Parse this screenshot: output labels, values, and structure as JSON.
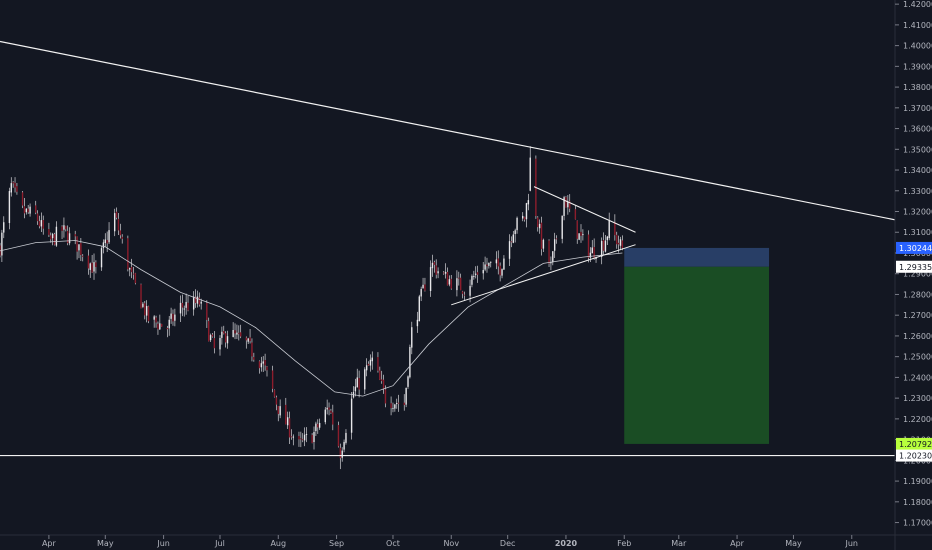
{
  "colors": {
    "background": "#131722",
    "candle_up": "#e7e7ea",
    "candle_down": "#8c1d2c",
    "wick": "#d4d4d8",
    "trendline": "#f2f2f2",
    "moving_average": "#c9ccd3",
    "stop_zone": "#283e66",
    "target_zone": "#1a4d24",
    "label_current_price": "#2962ff",
    "label_highlight": "#b8ff3c",
    "label_neutral": "#ffffff"
  },
  "chart_data": {
    "type": "candlestick",
    "title": "",
    "xlabel": "",
    "ylabel": "",
    "x_range": [
      "2019-03-06",
      "2020-06-24"
    ],
    "ylim": [
      1.164,
      1.422
    ],
    "grid": false,
    "legend": "none",
    "x_ticks": [
      {
        "date": "2019-04-01",
        "label": "Apr",
        "bold": false
      },
      {
        "date": "2019-05-01",
        "label": "May",
        "bold": false
      },
      {
        "date": "2019-06-01",
        "label": "Jun",
        "bold": false
      },
      {
        "date": "2019-07-01",
        "label": "Jul",
        "bold": false
      },
      {
        "date": "2019-08-01",
        "label": "Aug",
        "bold": false
      },
      {
        "date": "2019-09-01",
        "label": "Sep",
        "bold": false
      },
      {
        "date": "2019-10-01",
        "label": "Oct",
        "bold": false
      },
      {
        "date": "2019-11-01",
        "label": "Nov",
        "bold": false
      },
      {
        "date": "2019-12-01",
        "label": "Dec",
        "bold": false
      },
      {
        "date": "2020-01-01",
        "label": "2020",
        "bold": true
      },
      {
        "date": "2020-02-01",
        "label": "Feb",
        "bold": false
      },
      {
        "date": "2020-03-01",
        "label": "Mar",
        "bold": false
      },
      {
        "date": "2020-04-01",
        "label": "Apr",
        "bold": false
      },
      {
        "date": "2020-05-01",
        "label": "May",
        "bold": false
      },
      {
        "date": "2020-06-01",
        "label": "Jun",
        "bold": false
      }
    ],
    "y_ticks": [
      "1.17000",
      "1.18000",
      "1.19000",
      "1.20000",
      "1.21000",
      "1.22000",
      "1.23000",
      "1.24000",
      "1.25000",
      "1.26000",
      "1.27000",
      "1.28000",
      "1.29000",
      "1.30000",
      "1.31000",
      "1.32000",
      "1.33000",
      "1.34000",
      "1.35000",
      "1.36000",
      "1.37000",
      "1.38000",
      "1.39000",
      "1.40000",
      "1.41000",
      "1.42000"
    ],
    "price_labels": [
      {
        "text": "1.30244",
        "value": 1.30244,
        "style": "current_price"
      },
      {
        "text": "1.29335",
        "value": 1.29335,
        "style": "neutral"
      },
      {
        "text": "1.20792",
        "value": 1.20792,
        "style": "highlight"
      },
      {
        "text": "1.20230",
        "value": 1.2023,
        "style": "neutral"
      }
    ],
    "price_anchors": [
      [
        "2019-03-06",
        1.303
      ],
      [
        "2019-03-12",
        1.332
      ],
      [
        "2019-03-18",
        1.32
      ],
      [
        "2019-03-25",
        1.318
      ],
      [
        "2019-04-01",
        1.305
      ],
      [
        "2019-04-08",
        1.311
      ],
      [
        "2019-04-17",
        1.303
      ],
      [
        "2019-04-26",
        1.291
      ],
      [
        "2019-05-06",
        1.318
      ],
      [
        "2019-05-15",
        1.288
      ],
      [
        "2019-05-24",
        1.268
      ],
      [
        "2019-06-03",
        1.264
      ],
      [
        "2019-06-10",
        1.274
      ],
      [
        "2019-06-20",
        1.276
      ],
      [
        "2019-06-28",
        1.253
      ],
      [
        "2019-07-05",
        1.262
      ],
      [
        "2019-07-15",
        1.256
      ],
      [
        "2019-07-24",
        1.246
      ],
      [
        "2019-08-02",
        1.223
      ],
      [
        "2019-08-12",
        1.207
      ],
      [
        "2019-08-20",
        1.213
      ],
      [
        "2019-08-28",
        1.226
      ],
      [
        "2019-09-03",
        1.204
      ],
      [
        "2019-09-10",
        1.233
      ],
      [
        "2019-09-20",
        1.248
      ],
      [
        "2019-09-27",
        1.23
      ],
      [
        "2019-10-07",
        1.227
      ],
      [
        "2019-10-11",
        1.262
      ],
      [
        "2019-10-21",
        1.295
      ],
      [
        "2019-10-29",
        1.288
      ],
      [
        "2019-11-08",
        1.283
      ],
      [
        "2019-11-18",
        1.294
      ],
      [
        "2019-11-27",
        1.293
      ],
      [
        "2019-12-04",
        1.312
      ],
      [
        "2019-12-10",
        1.317
      ],
      [
        "2019-12-13",
        1.335
      ],
      [
        "2019-12-19",
        1.305
      ],
      [
        "2019-12-24",
        1.293
      ],
      [
        "2019-12-31",
        1.327
      ],
      [
        "2020-01-08",
        1.308
      ],
      [
        "2020-01-14",
        1.3
      ],
      [
        "2020-01-21",
        1.305
      ],
      [
        "2020-01-24",
        1.312
      ],
      [
        "2020-01-31",
        1.302
      ]
    ],
    "moving_average": [
      [
        "2019-03-06",
        1.301
      ],
      [
        "2019-03-25",
        1.305
      ],
      [
        "2019-04-15",
        1.306
      ],
      [
        "2019-05-01",
        1.303
      ],
      [
        "2019-05-20",
        1.292
      ],
      [
        "2019-06-10",
        1.281
      ],
      [
        "2019-07-01",
        1.274
      ],
      [
        "2019-07-20",
        1.264
      ],
      [
        "2019-08-10",
        1.248
      ],
      [
        "2019-08-31",
        1.233
      ],
      [
        "2019-09-15",
        1.231
      ],
      [
        "2019-10-01",
        1.236
      ],
      [
        "2019-10-20",
        1.256
      ],
      [
        "2019-11-10",
        1.274
      ],
      [
        "2019-12-01",
        1.285
      ],
      [
        "2019-12-20",
        1.295
      ],
      [
        "2020-01-10",
        1.298
      ],
      [
        "2020-01-31",
        1.3
      ]
    ],
    "trendlines": [
      {
        "name": "long-term-resistance",
        "from": [
          "2019-03-06",
          1.402
        ],
        "to": [
          "2020-06-24",
          1.316
        ]
      },
      {
        "name": "triangle-upper",
        "from": [
          "2019-12-15",
          1.332
        ],
        "to": [
          "2020-02-07",
          1.31
        ]
      },
      {
        "name": "triangle-lower",
        "from": [
          "2019-11-01",
          1.275
        ],
        "to": [
          "2020-02-07",
          1.304
        ]
      },
      {
        "name": "horizontal-support",
        "from": [
          "2019-03-06",
          1.2023
        ],
        "to": [
          "2020-06-24",
          1.2023
        ]
      }
    ],
    "position_zones": [
      {
        "name": "stop-zone",
        "x_start": "2020-02-01",
        "x_end": "2020-04-18",
        "y_top": 1.30244,
        "y_bottom": 1.29335
      },
      {
        "name": "target-zone",
        "x_start": "2020-02-01",
        "x_end": "2020-04-18",
        "y_top": 1.29335,
        "y_bottom": 1.20792
      }
    ]
  }
}
